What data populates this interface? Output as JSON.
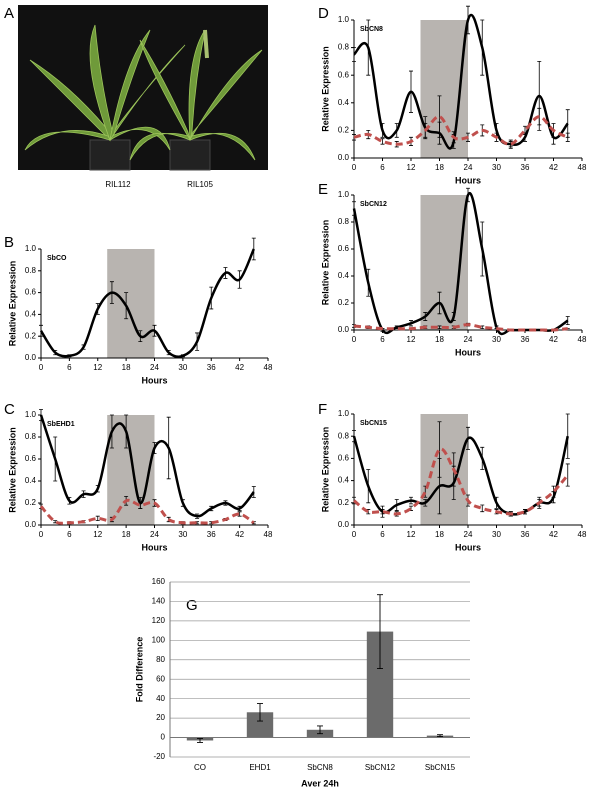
{
  "panel_a": {
    "label": "A",
    "captions": [
      "RIL112",
      "RIL105"
    ]
  },
  "chart_data": [
    {
      "type": "line",
      "panel": "B",
      "title": "SbCO",
      "xlabel": "Hours",
      "ylabel": "Relative Expression",
      "xlim": [
        0,
        48
      ],
      "xticks": [
        0,
        6,
        12,
        18,
        24,
        30,
        36,
        42,
        48
      ],
      "ylim": [
        0,
        1
      ],
      "yticks": [
        {
          "value": 0,
          "label": "0.0"
        },
        0.2,
        0.4,
        0.6,
        0.8,
        {
          "value": 1,
          "label": "1.0"
        }
      ],
      "shade": [
        14,
        24
      ],
      "shade_color": "#b8b4b0",
      "x": [
        0,
        3,
        6,
        9,
        12,
        15,
        18,
        21,
        24,
        27,
        30,
        33,
        36,
        39,
        42,
        45
      ],
      "series": [
        {
          "color": "#000000",
          "dashed": false,
          "values": [
            0.25,
            0.05,
            0.02,
            0.1,
            0.45,
            0.6,
            0.48,
            0.2,
            0.25,
            0.05,
            0.02,
            0.15,
            0.55,
            0.78,
            0.72,
            1.0
          ],
          "errors": [
            0.05,
            0.02,
            0.01,
            0.02,
            0.05,
            0.1,
            0.12,
            0.05,
            0.05,
            0.02,
            0.01,
            0.08,
            0.1,
            0.05,
            0.08,
            0.1
          ]
        }
      ]
    },
    {
      "type": "line",
      "panel": "C",
      "title": "SbEHD1",
      "xlabel": "Hours",
      "ylabel": "Relative Expression",
      "xlim": [
        0,
        48
      ],
      "xticks": [
        0,
        6,
        12,
        18,
        24,
        30,
        36,
        42,
        48
      ],
      "ylim": [
        0,
        1
      ],
      "yticks": [
        {
          "value": 0,
          "label": "0.0"
        },
        0.2,
        0.4,
        0.6,
        0.8,
        {
          "value": 1,
          "label": "1.0"
        }
      ],
      "shade": [
        14,
        24
      ],
      "shade_color": "#b8b4b0",
      "x": [
        0,
        3,
        6,
        9,
        12,
        15,
        18,
        21,
        24,
        27,
        30,
        33,
        36,
        39,
        42,
        45
      ],
      "series": [
        {
          "color": "#000000",
          "dashed": false,
          "values": [
            1.0,
            0.6,
            0.22,
            0.28,
            0.33,
            0.85,
            0.85,
            0.2,
            0.7,
            0.7,
            0.2,
            0.08,
            0.15,
            0.2,
            0.15,
            0.3
          ],
          "errors": [
            0.05,
            0.2,
            0.03,
            0.03,
            0.03,
            0.15,
            0.15,
            0.05,
            0.05,
            0.28,
            0.03,
            0.02,
            0.02,
            0.02,
            0.02,
            0.05
          ]
        },
        {
          "color": "#c0504d",
          "dashed": true,
          "values": [
            0.17,
            0.03,
            0.02,
            0.03,
            0.06,
            0.05,
            0.22,
            0.18,
            0.2,
            0.05,
            0.02,
            0.02,
            0.02,
            0.05,
            0.1,
            0.02
          ],
          "errors": [
            0.02,
            0.01,
            0.01,
            0.01,
            0.02,
            0.02,
            0.04,
            0.03,
            0.03,
            0.02,
            0.01,
            0.01,
            0.01,
            0.01,
            0.02,
            0.01
          ]
        }
      ]
    },
    {
      "type": "line",
      "panel": "D",
      "title": "SbCN8",
      "xlabel": "Hours",
      "ylabel": "Relative Expression",
      "xlim": [
        0,
        48
      ],
      "xticks": [
        0,
        6,
        12,
        18,
        24,
        30,
        36,
        42,
        48
      ],
      "ylim": [
        0,
        1
      ],
      "yticks": [
        {
          "value": 0,
          "label": "0.0"
        },
        0.2,
        0.4,
        0.6,
        0.8,
        {
          "value": 1,
          "label": "1.0"
        }
      ],
      "shade": [
        14,
        24
      ],
      "shade_color": "#b8b4b0",
      "x": [
        0,
        3,
        6,
        9,
        12,
        15,
        18,
        21,
        24,
        27,
        30,
        33,
        36,
        39,
        42,
        45
      ],
      "series": [
        {
          "color": "#000000",
          "dashed": false,
          "values": [
            0.75,
            0.8,
            0.2,
            0.2,
            0.48,
            0.22,
            0.18,
            0.12,
            1.0,
            0.8,
            0.2,
            0.1,
            0.15,
            0.45,
            0.15,
            0.25
          ],
          "errors": [
            0.05,
            0.2,
            0.05,
            0.05,
            0.15,
            0.08,
            0.08,
            0.05,
            0.1,
            0.2,
            0.05,
            0.03,
            0.03,
            0.25,
            0.05,
            0.1
          ]
        },
        {
          "color": "#c0504d",
          "dashed": true,
          "values": [
            0.15,
            0.17,
            0.12,
            0.1,
            0.12,
            0.2,
            0.3,
            0.15,
            0.15,
            0.2,
            0.15,
            0.1,
            0.2,
            0.3,
            0.2,
            0.15
          ],
          "errors": [
            0.02,
            0.03,
            0.02,
            0.02,
            0.03,
            0.05,
            0.15,
            0.04,
            0.03,
            0.04,
            0.03,
            0.02,
            0.03,
            0.06,
            0.05,
            0.03
          ]
        }
      ]
    },
    {
      "type": "line",
      "panel": "E",
      "title": "SbCN12",
      "xlabel": "Hours",
      "ylabel": "Relative Expression",
      "xlim": [
        0,
        48
      ],
      "xticks": [
        0,
        6,
        12,
        18,
        24,
        30,
        36,
        42,
        48
      ],
      "ylim": [
        0,
        1
      ],
      "yticks": [
        {
          "value": 0,
          "label": "0.0"
        },
        0.2,
        0.4,
        0.6,
        0.8,
        {
          "value": 1,
          "label": "1.0"
        }
      ],
      "shade": [
        14,
        24
      ],
      "shade_color": "#b8b4b0",
      "x": [
        0,
        3,
        6,
        9,
        12,
        15,
        18,
        21,
        24,
        27,
        30,
        33,
        36,
        39,
        42,
        45
      ],
      "series": [
        {
          "color": "#000000",
          "dashed": false,
          "values": [
            0.9,
            0.35,
            0.0,
            0.02,
            0.05,
            0.1,
            0.2,
            0.1,
            1.0,
            0.6,
            0.02,
            0.0,
            0.0,
            0.0,
            0.0,
            0.07
          ],
          "errors": [
            0.05,
            0.1,
            0.01,
            0.01,
            0.02,
            0.03,
            0.08,
            0.03,
            0.05,
            0.2,
            0.01,
            0.0,
            0.0,
            0.0,
            0.0,
            0.03
          ]
        },
        {
          "color": "#c0504d",
          "dashed": true,
          "values": [
            0.03,
            0.02,
            0.01,
            0.01,
            0.01,
            0.02,
            0.02,
            0.02,
            0.04,
            0.02,
            0.01,
            0.0,
            0.0,
            0.0,
            0.0,
            0.01
          ],
          "errors": [
            0.01,
            0.01,
            0.0,
            0.0,
            0.0,
            0.01,
            0.01,
            0.01,
            0.01,
            0.01,
            0.0,
            0.0,
            0.0,
            0.0,
            0.0,
            0.0
          ]
        }
      ]
    },
    {
      "type": "line",
      "panel": "F",
      "title": "SbCN15",
      "xlabel": "Hours",
      "ylabel": "Relative Expression",
      "xlim": [
        0,
        48
      ],
      "xticks": [
        0,
        6,
        12,
        18,
        24,
        30,
        36,
        42,
        48
      ],
      "ylim": [
        0,
        1
      ],
      "yticks": [
        {
          "value": 0,
          "label": "0.0"
        },
        0.2,
        0.4,
        0.6,
        0.8,
        {
          "value": 1,
          "label": "1.0"
        }
      ],
      "shade": [
        14,
        24
      ],
      "shade_color": "#b8b4b0",
      "x": [
        0,
        3,
        6,
        9,
        12,
        15,
        18,
        21,
        24,
        27,
        30,
        33,
        36,
        39,
        42,
        45
      ],
      "series": [
        {
          "color": "#000000",
          "dashed": false,
          "values": [
            0.8,
            0.35,
            0.12,
            0.18,
            0.22,
            0.2,
            0.35,
            0.38,
            0.78,
            0.6,
            0.2,
            0.1,
            0.12,
            0.2,
            0.25,
            0.8
          ],
          "errors": [
            0.05,
            0.15,
            0.05,
            0.05,
            0.03,
            0.03,
            0.25,
            0.15,
            0.1,
            0.1,
            0.05,
            0.02,
            0.02,
            0.05,
            0.05,
            0.2
          ]
        },
        {
          "color": "#c0504d",
          "dashed": true,
          "values": [
            0.22,
            0.12,
            0.12,
            0.1,
            0.15,
            0.3,
            0.68,
            0.5,
            0.22,
            0.15,
            0.12,
            0.1,
            0.12,
            0.2,
            0.3,
            0.45
          ],
          "errors": [
            0.03,
            0.02,
            0.02,
            0.02,
            0.02,
            0.05,
            0.25,
            0.15,
            0.05,
            0.03,
            0.02,
            0.02,
            0.02,
            0.03,
            0.05,
            0.1
          ]
        }
      ]
    },
    {
      "type": "bar",
      "panel": "G",
      "xlabel": "Aver 24h",
      "ylabel": "Fold Difference",
      "categories": [
        "CO",
        "EHD1",
        "SbCN8",
        "SbCN12",
        "SbCN15"
      ],
      "values": [
        -3,
        26,
        8,
        109,
        2
      ],
      "errors": [
        2,
        9,
        4,
        38,
        1
      ],
      "color": "#6b6b6b",
      "ylim": [
        -20,
        160
      ],
      "yticks": [
        -20,
        0,
        20,
        40,
        60,
        80,
        100,
        120,
        140,
        160
      ],
      "grid": true
    }
  ]
}
